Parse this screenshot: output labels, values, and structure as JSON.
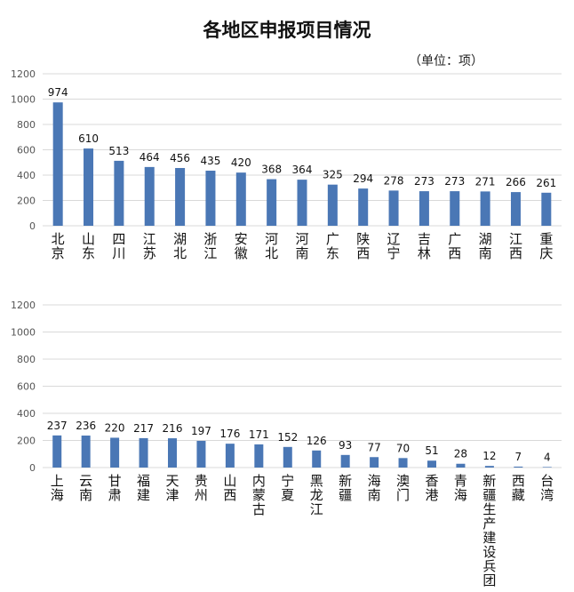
{
  "title": "各地区申报项目情况",
  "unit": "（单位：项）",
  "chart_data": [
    {
      "type": "bar",
      "ylim": [
        0,
        1200
      ],
      "yticks": [
        0,
        200,
        400,
        600,
        800,
        1000,
        1200
      ],
      "grid": true,
      "categories": [
        "北京",
        "山东",
        "四川",
        "江苏",
        "湖北",
        "浙江",
        "安徽",
        "河北",
        "河南",
        "广东",
        "陕西",
        "辽宁",
        "吉林",
        "广西",
        "湖南",
        "江西",
        "重庆"
      ],
      "values": [
        974,
        610,
        513,
        464,
        456,
        435,
        420,
        368,
        364,
        325,
        294,
        278,
        273,
        273,
        271,
        266,
        261
      ],
      "color": "#4A77B5"
    },
    {
      "type": "bar",
      "ylim": [
        0,
        1200
      ],
      "yticks": [
        0,
        200,
        400,
        600,
        800,
        1000,
        1200
      ],
      "grid": true,
      "categories": [
        "上海",
        "云南",
        "甘肃",
        "福建",
        "天津",
        "贵州",
        "山西",
        "内蒙古",
        "宁夏",
        "黑龙江",
        "新疆",
        "海南",
        "澳门",
        "香港",
        "青海",
        "新疆生产建设兵团",
        "西藏",
        "台湾"
      ],
      "values": [
        237,
        236,
        220,
        217,
        216,
        197,
        176,
        171,
        152,
        126,
        93,
        77,
        70,
        51,
        28,
        12,
        7,
        4
      ],
      "color": "#4A77B5"
    }
  ]
}
